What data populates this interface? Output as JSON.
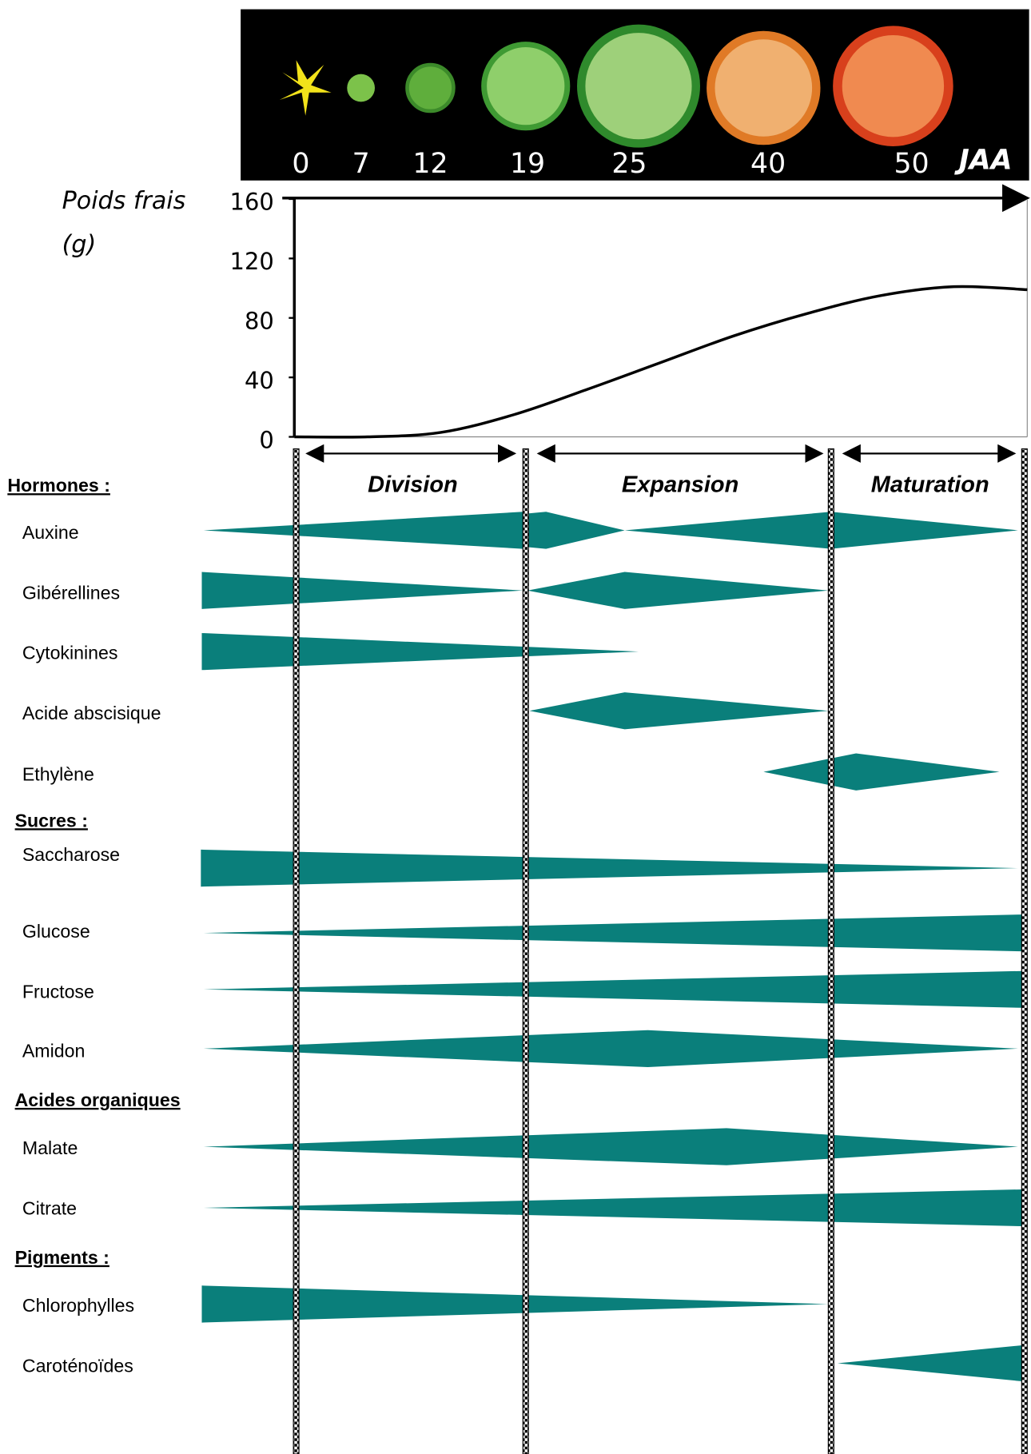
{
  "photo_strip": {
    "days": [
      0,
      7,
      12,
      19,
      25,
      40,
      50
    ],
    "unit": "JAA"
  },
  "weight_chart": {
    "y_label_line1": "Poids frais",
    "y_label_line2": "(g)",
    "ylim": [
      0,
      160
    ],
    "yticks": [
      0,
      40,
      80,
      120,
      160
    ],
    "values": [
      0,
      0,
      3,
      15,
      32,
      50,
      68,
      83,
      95,
      101,
      99
    ]
  },
  "phases": [
    "Division",
    "Expansion",
    "Maturation"
  ],
  "groups": [
    {
      "title": "Hormones :",
      "items": [
        "Auxine",
        "Gibérellines",
        "Cytokinines",
        "Acide abscisique",
        "Ethylène"
      ]
    },
    {
      "title": "Sucres :",
      "items": [
        "Saccharose",
        "Glucose",
        "Fructose",
        "Amidon"
      ]
    },
    {
      "title": "Acides organiques",
      "items": [
        "Malate",
        "Citrate"
      ]
    },
    {
      "title": "Pigments :",
      "items": [
        "Chlorophylles",
        "Caroténoïdes"
      ]
    }
  ]
}
